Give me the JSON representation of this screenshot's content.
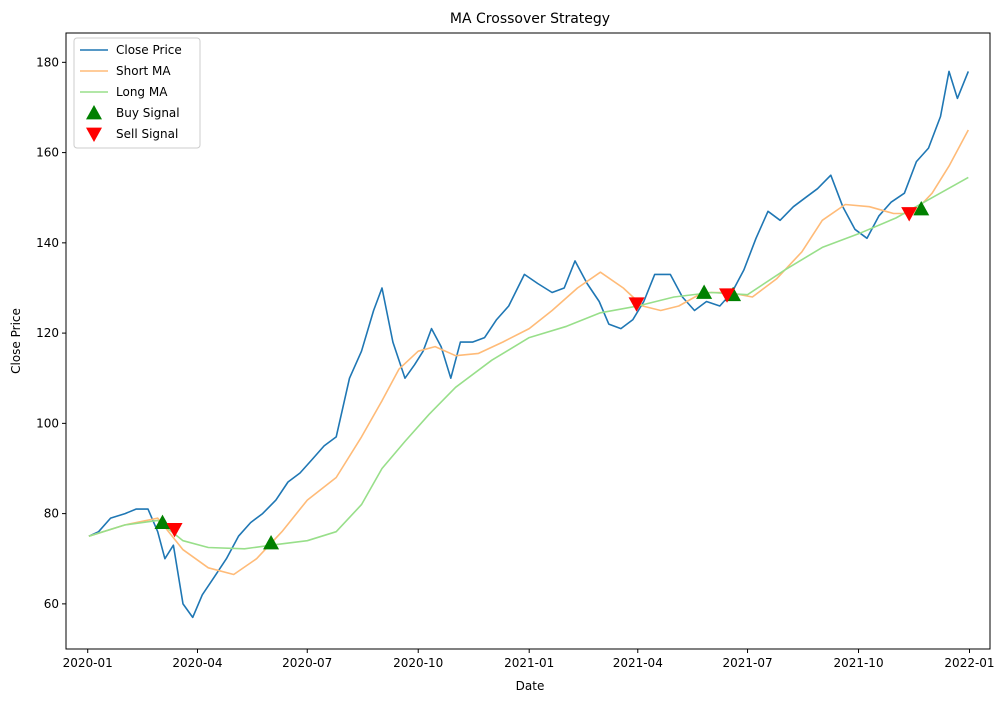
{
  "chart_data": {
    "type": "line",
    "title": "MA Crossover Strategy",
    "xlabel": "Date",
    "ylabel": "Close Price",
    "x_start": "2020-01-02",
    "x_end": "2021-12-31",
    "xlim": [
      "2019-12-14",
      "2022-01-18"
    ],
    "ylim": [
      50,
      186.5
    ],
    "xticks": [
      {
        "date": "2020-01-01",
        "label": "2020-01"
      },
      {
        "date": "2020-04-01",
        "label": "2020-04"
      },
      {
        "date": "2020-07-01",
        "label": "2020-07"
      },
      {
        "date": "2020-10-01",
        "label": "2020-10"
      },
      {
        "date": "2021-01-01",
        "label": "2021-01"
      },
      {
        "date": "2021-04-01",
        "label": "2021-04"
      },
      {
        "date": "2021-07-01",
        "label": "2021-07"
      },
      {
        "date": "2021-10-01",
        "label": "2021-10"
      },
      {
        "date": "2022-01-01",
        "label": "2022-01"
      }
    ],
    "yticks": [
      60,
      80,
      100,
      120,
      140,
      160,
      180
    ],
    "legend": {
      "position": "top-left",
      "entries": [
        "Close Price",
        "Short MA",
        "Long MA",
        "Buy Signal",
        "Sell Signal"
      ]
    },
    "series": [
      {
        "name": "Close Price",
        "color": "#1f77b4",
        "points": [
          [
            "2020-01-02",
            75
          ],
          [
            "2020-01-10",
            76
          ],
          [
            "2020-01-20",
            79
          ],
          [
            "2020-02-01",
            80
          ],
          [
            "2020-02-10",
            81
          ],
          [
            "2020-02-20",
            81
          ],
          [
            "2020-02-28",
            76
          ],
          [
            "2020-03-05",
            70
          ],
          [
            "2020-03-12",
            73
          ],
          [
            "2020-03-20",
            60
          ],
          [
            "2020-03-28",
            57
          ],
          [
            "2020-04-05",
            62
          ],
          [
            "2020-04-15",
            66
          ],
          [
            "2020-04-25",
            70
          ],
          [
            "2020-05-05",
            75
          ],
          [
            "2020-05-15",
            78
          ],
          [
            "2020-05-25",
            80
          ],
          [
            "2020-06-05",
            83
          ],
          [
            "2020-06-15",
            87
          ],
          [
            "2020-06-25",
            89
          ],
          [
            "2020-07-05",
            92
          ],
          [
            "2020-07-15",
            95
          ],
          [
            "2020-07-25",
            97
          ],
          [
            "2020-08-05",
            110
          ],
          [
            "2020-08-15",
            116
          ],
          [
            "2020-08-25",
            125
          ],
          [
            "2020-09-01",
            130
          ],
          [
            "2020-09-10",
            118
          ],
          [
            "2020-09-20",
            110
          ],
          [
            "2020-09-28",
            113
          ],
          [
            "2020-10-05",
            116
          ],
          [
            "2020-10-12",
            121
          ],
          [
            "2020-10-20",
            117
          ],
          [
            "2020-10-28",
            110
          ],
          [
            "2020-11-05",
            118
          ],
          [
            "2020-11-15",
            118
          ],
          [
            "2020-11-25",
            119
          ],
          [
            "2020-12-05",
            123
          ],
          [
            "2020-12-15",
            126
          ],
          [
            "2020-12-28",
            133
          ],
          [
            "2021-01-08",
            131
          ],
          [
            "2021-01-20",
            129
          ],
          [
            "2021-01-30",
            130
          ],
          [
            "2021-02-08",
            136
          ],
          [
            "2021-02-18",
            131
          ],
          [
            "2021-02-28",
            127
          ],
          [
            "2021-03-08",
            122
          ],
          [
            "2021-03-18",
            121
          ],
          [
            "2021-03-28",
            123
          ],
          [
            "2021-04-06",
            127
          ],
          [
            "2021-04-15",
            133
          ],
          [
            "2021-04-28",
            133
          ],
          [
            "2021-05-08",
            128
          ],
          [
            "2021-05-18",
            125
          ],
          [
            "2021-05-28",
            127
          ],
          [
            "2021-06-08",
            126
          ],
          [
            "2021-06-18",
            129
          ],
          [
            "2021-06-28",
            134
          ],
          [
            "2021-07-08",
            141
          ],
          [
            "2021-07-18",
            147
          ],
          [
            "2021-07-28",
            145
          ],
          [
            "2021-08-08",
            148
          ],
          [
            "2021-08-18",
            150
          ],
          [
            "2021-08-28",
            152
          ],
          [
            "2021-09-08",
            155
          ],
          [
            "2021-09-18",
            148
          ],
          [
            "2021-09-28",
            143
          ],
          [
            "2021-10-08",
            141
          ],
          [
            "2021-10-18",
            146
          ],
          [
            "2021-10-28",
            149
          ],
          [
            "2021-11-08",
            151
          ],
          [
            "2021-11-18",
            158
          ],
          [
            "2021-11-28",
            161
          ],
          [
            "2021-12-08",
            168
          ],
          [
            "2021-12-15",
            178
          ],
          [
            "2021-12-22",
            172
          ],
          [
            "2021-12-31",
            178
          ]
        ]
      },
      {
        "name": "Short MA",
        "color": "#ffbb78",
        "points": [
          [
            "2020-01-02",
            75
          ],
          [
            "2020-02-01",
            77.5
          ],
          [
            "2020-02-28",
            79
          ],
          [
            "2020-03-20",
            72
          ],
          [
            "2020-04-10",
            68
          ],
          [
            "2020-05-01",
            66.5
          ],
          [
            "2020-05-20",
            70
          ],
          [
            "2020-06-10",
            76
          ],
          [
            "2020-07-01",
            83
          ],
          [
            "2020-07-25",
            88
          ],
          [
            "2020-08-15",
            97
          ],
          [
            "2020-09-01",
            105
          ],
          [
            "2020-09-15",
            112
          ],
          [
            "2020-10-01",
            116
          ],
          [
            "2020-10-15",
            117
          ],
          [
            "2020-11-01",
            115
          ],
          [
            "2020-11-20",
            115.5
          ],
          [
            "2020-12-10",
            118
          ],
          [
            "2021-01-01",
            121
          ],
          [
            "2021-01-20",
            125
          ],
          [
            "2021-02-10",
            130
          ],
          [
            "2021-03-01",
            133.5
          ],
          [
            "2021-03-20",
            130
          ],
          [
            "2021-04-05",
            126
          ],
          [
            "2021-04-20",
            125
          ],
          [
            "2021-05-05",
            126
          ],
          [
            "2021-05-25",
            129
          ],
          [
            "2021-06-15",
            129
          ],
          [
            "2021-07-05",
            128
          ],
          [
            "2021-07-25",
            132
          ],
          [
            "2021-08-15",
            138
          ],
          [
            "2021-09-01",
            145
          ],
          [
            "2021-09-20",
            148.5
          ],
          [
            "2021-10-10",
            148
          ],
          [
            "2021-10-30",
            146.5
          ],
          [
            "2021-11-15",
            146.5
          ],
          [
            "2021-12-01",
            151
          ],
          [
            "2021-12-15",
            157
          ],
          [
            "2021-12-31",
            165
          ]
        ]
      },
      {
        "name": "Long MA",
        "color": "#98df8a",
        "points": [
          [
            "2020-01-02",
            75
          ],
          [
            "2020-02-01",
            77.5
          ],
          [
            "2020-02-28",
            78.5
          ],
          [
            "2020-03-20",
            74
          ],
          [
            "2020-04-10",
            72.5
          ],
          [
            "2020-05-10",
            72.2
          ],
          [
            "2020-06-01",
            73
          ],
          [
            "2020-07-01",
            74
          ],
          [
            "2020-07-25",
            76
          ],
          [
            "2020-08-15",
            82
          ],
          [
            "2020-09-01",
            90
          ],
          [
            "2020-09-20",
            96
          ],
          [
            "2020-10-10",
            102
          ],
          [
            "2020-11-01",
            108
          ],
          [
            "2020-12-01",
            114
          ],
          [
            "2021-01-01",
            119
          ],
          [
            "2021-02-01",
            121.5
          ],
          [
            "2021-03-01",
            124.5
          ],
          [
            "2021-04-01",
            126
          ],
          [
            "2021-05-01",
            128
          ],
          [
            "2021-06-01",
            129
          ],
          [
            "2021-07-01",
            128.5
          ],
          [
            "2021-08-01",
            134
          ],
          [
            "2021-09-01",
            139
          ],
          [
            "2021-10-01",
            142
          ],
          [
            "2021-11-01",
            145.5
          ],
          [
            "2021-12-01",
            150
          ],
          [
            "2021-12-31",
            154.5
          ]
        ]
      }
    ],
    "buy_signals": {
      "name": "Buy Signal",
      "color": "#008000",
      "points": [
        [
          "2020-03-03",
          78
        ],
        [
          "2020-06-01",
          73.5
        ],
        [
          "2021-05-26",
          129
        ],
        [
          "2021-06-19",
          128.5
        ],
        [
          "2021-11-22",
          147.5
        ]
      ]
    },
    "sell_signals": {
      "name": "Sell Signal",
      "color": "#ff0000",
      "points": [
        [
          "2020-03-13",
          76.5
        ],
        [
          "2021-03-31",
          126.5
        ],
        [
          "2021-06-14",
          128.5
        ],
        [
          "2021-11-12",
          146.5
        ]
      ]
    }
  }
}
